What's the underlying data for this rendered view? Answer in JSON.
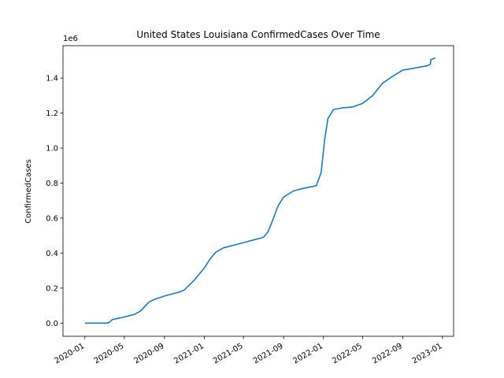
{
  "chart_data": {
    "type": "line",
    "title": "United States Louisiana ConfirmedCases Over Time",
    "xlabel": "",
    "ylabel": "ConfirmedCases",
    "y_offset_label": "1e6",
    "xlim": [
      "2019-10-26",
      "2023-02-04"
    ],
    "ylim": [
      -0.075,
      1.585
    ],
    "grid": false,
    "x_ticks": [
      "2020-01",
      "2020-05",
      "2020-09",
      "2021-01",
      "2021-05",
      "2021-09",
      "2022-01",
      "2022-05",
      "2022-09",
      "2023-01"
    ],
    "y_ticks": [
      "0.0",
      "0.2",
      "0.4",
      "0.6",
      "0.8",
      "1.0",
      "1.2",
      "1.4"
    ],
    "series": [
      {
        "color": "#1f77b4",
        "x": [
          "2020-01-01",
          "2020-03-08",
          "2020-03-15",
          "2020-03-25",
          "2020-04-05",
          "2020-05-01",
          "2020-06-01",
          "2020-06-20",
          "2020-07-15",
          "2020-08-01",
          "2020-09-01",
          "2020-10-01",
          "2020-10-20",
          "2020-11-01",
          "2020-12-01",
          "2021-01-01",
          "2021-01-20",
          "2021-02-05",
          "2021-03-01",
          "2021-04-01",
          "2021-05-01",
          "2021-06-01",
          "2021-07-01",
          "2021-07-15",
          "2021-08-01",
          "2021-08-15",
          "2021-09-01",
          "2021-10-01",
          "2021-11-01",
          "2021-12-10",
          "2021-12-25",
          "2022-01-05",
          "2022-01-15",
          "2022-02-01",
          "2022-03-01",
          "2022-04-01",
          "2022-05-01",
          "2022-06-01",
          "2022-07-01",
          "2022-08-01",
          "2022-09-01",
          "2022-10-01",
          "2022-11-15",
          "2022-11-25",
          "2022-11-26",
          "2022-12-10"
        ],
        "y": [
          0.0,
          0.0,
          0.003,
          0.02,
          0.025,
          0.035,
          0.05,
          0.07,
          0.12,
          0.135,
          0.155,
          0.17,
          0.18,
          0.19,
          0.245,
          0.315,
          0.37,
          0.405,
          0.43,
          0.445,
          0.46,
          0.475,
          0.49,
          0.52,
          0.6,
          0.67,
          0.72,
          0.755,
          0.77,
          0.785,
          0.86,
          1.05,
          1.17,
          1.22,
          1.23,
          1.235,
          1.255,
          1.3,
          1.37,
          1.41,
          1.445,
          1.455,
          1.47,
          1.48,
          1.505,
          1.515
        ]
      }
    ]
  }
}
